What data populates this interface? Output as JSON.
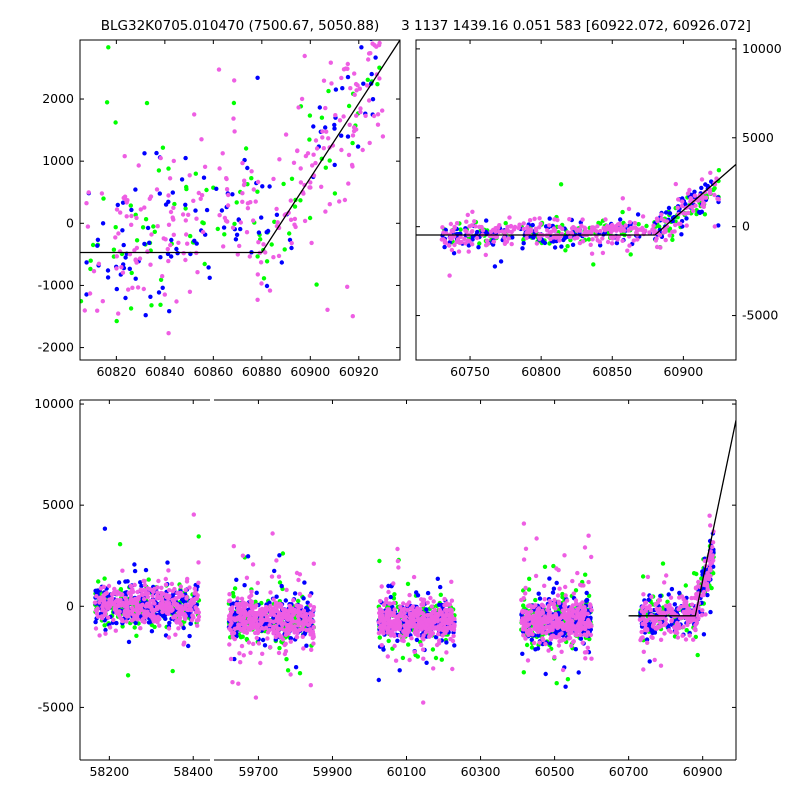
{
  "titles": {
    "left": "BLG32K0705.010470 (7500.67, 5050.88)",
    "right": "3 1137 1439.16 0.051 583 [60922.072, 60926.072]"
  },
  "colors": {
    "green": "#00ff00",
    "blue": "#0000ff",
    "pink": "#ee5ee3",
    "model": "#000000"
  },
  "chart_data": [
    {
      "id": "top-left",
      "type": "scatter",
      "xlim": [
        60805,
        60937
      ],
      "ylim": [
        -2200,
        2950
      ],
      "xticks": [
        60820,
        60840,
        60860,
        60880,
        60900,
        60920
      ],
      "yticks": [
        -2000,
        -1000,
        0,
        1000,
        2000
      ],
      "tick_side": "left",
      "model": {
        "x": [
          60805,
          60880,
          60937
        ],
        "y": [
          -470,
          -470,
          2950
        ]
      },
      "clusters": [
        {
          "x0": 60805,
          "x1": 60880,
          "base": -480,
          "slope": 10,
          "sd": 550,
          "spread": 5,
          "out": 0.14,
          "n": 290
        },
        {
          "x0": 60880,
          "x1": 60930,
          "base": -300,
          "slope": 60,
          "sd": 550,
          "spread": 3,
          "out": 0.12,
          "n": 190
        }
      ],
      "seed": 11
    },
    {
      "id": "top-right",
      "type": "scatter",
      "xlim": [
        60712,
        60937
      ],
      "ylim": [
        -7500,
        10500
      ],
      "xticks": [
        60750,
        60800,
        60850,
        60900
      ],
      "yticks": [
        -5000,
        0,
        5000,
        10000
      ],
      "tick_side": "right",
      "model": {
        "x": [
          60712,
          60880,
          60937
        ],
        "y": [
          -470,
          -470,
          3500
        ]
      },
      "clusters": [
        {
          "x0": 60730,
          "x1": 60880,
          "base": -550,
          "slope": 2,
          "sd": 350,
          "spread": 3,
          "out": 0.1,
          "n": 480
        },
        {
          "x0": 60880,
          "x1": 60925,
          "base": -350,
          "slope": 60,
          "sd": 450,
          "spread": 3,
          "out": 0.08,
          "n": 180
        }
      ],
      "seed": 23
    },
    {
      "id": "bottom",
      "type": "scatter",
      "broken_x_axis": true,
      "segments": [
        {
          "xlim": [
            58130,
            58440
          ],
          "xticks": [
            58200,
            58400
          ]
        },
        {
          "xlim": [
            59580,
            60990
          ],
          "xticks": [
            59700,
            59900,
            60100,
            60300,
            60500,
            60700,
            60900
          ]
        }
      ],
      "ylim": [
        -7600,
        10200
      ],
      "yticks": [
        -5000,
        0,
        5000,
        10000
      ],
      "tick_side": "left",
      "model": {
        "x": [
          60700,
          60880,
          60990
        ],
        "y": [
          -470,
          -470,
          9200
        ]
      },
      "clusters": [
        {
          "x0": 58165,
          "x1": 58415,
          "base": 0,
          "slope": 0,
          "sd": 450,
          "spread": 3,
          "out": 0.12,
          "n": 780
        },
        {
          "x0": 59620,
          "x1": 59850,
          "base": -650,
          "slope": 0,
          "sd": 500,
          "spread": 3.5,
          "out": 0.14,
          "n": 820
        },
        {
          "x0": 60025,
          "x1": 60230,
          "base": -750,
          "slope": 0,
          "sd": 450,
          "spread": 3,
          "out": 0.12,
          "n": 800
        },
        {
          "x0": 60410,
          "x1": 60600,
          "base": -700,
          "slope": 0,
          "sd": 500,
          "spread": 3.5,
          "out": 0.14,
          "n": 800
        },
        {
          "x0": 60730,
          "x1": 60880,
          "base": -650,
          "slope": 2,
          "sd": 450,
          "spread": 3,
          "out": 0.12,
          "n": 330
        },
        {
          "x0": 60880,
          "x1": 60930,
          "base": -300,
          "slope": 60,
          "sd": 550,
          "spread": 3,
          "out": 0.1,
          "n": 150
        }
      ],
      "seed": 37
    }
  ]
}
